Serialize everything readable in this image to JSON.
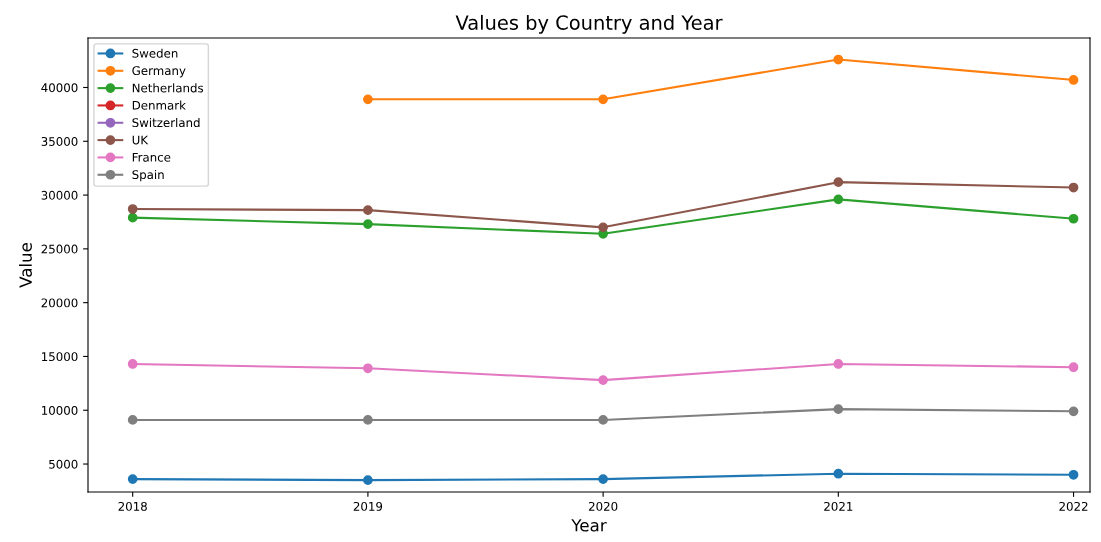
{
  "chart_data": {
    "type": "line",
    "title": "Values by Country and Year",
    "xlabel": "Year",
    "ylabel": "Value",
    "categories": [
      "2018",
      "2019",
      "2020",
      "2021",
      "2022"
    ],
    "series": [
      {
        "name": "Sweden",
        "color": "#1f77b4",
        "values": [
          3600,
          3500,
          3600,
          4100,
          4000
        ]
      },
      {
        "name": "Germany",
        "color": "#ff7f0e",
        "values": [
          null,
          38900,
          38900,
          42600,
          40700
        ]
      },
      {
        "name": "Netherlands",
        "color": "#2ca02c",
        "values": [
          27900,
          27300,
          26400,
          29600,
          27800
        ]
      },
      {
        "name": "Denmark",
        "color": "#d62728",
        "values": [
          null,
          null,
          null,
          null,
          null
        ]
      },
      {
        "name": "Switzerland",
        "color": "#9467bd",
        "values": [
          null,
          null,
          null,
          null,
          null
        ]
      },
      {
        "name": "UK",
        "color": "#8c564b",
        "values": [
          28700,
          28600,
          27000,
          31200,
          30700
        ]
      },
      {
        "name": "France",
        "color": "#e377c2",
        "values": [
          14300,
          13900,
          12800,
          14300,
          14000
        ]
      },
      {
        "name": "Spain",
        "color": "#7f7f7f",
        "values": [
          9100,
          9100,
          9100,
          10100,
          9900
        ]
      }
    ],
    "ylim": [
      2400,
      44600
    ],
    "yticks": [
      5000,
      10000,
      15000,
      20000,
      25000,
      30000,
      35000,
      40000
    ],
    "marker": "circle",
    "line_style": "solid",
    "legend": "top left",
    "grid": false
  }
}
